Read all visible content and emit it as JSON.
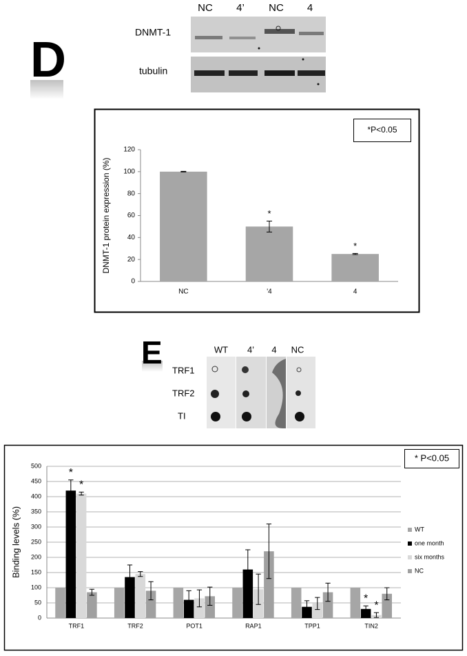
{
  "figure": {
    "panels": [
      "D",
      "E"
    ],
    "blot_d": {
      "columns": [
        "NC",
        "4’",
        "NC",
        "4"
      ],
      "rows": [
        "DNMT-1",
        "tubulin"
      ]
    },
    "blot_e": {
      "columns": [
        "WT",
        "4’",
        "4",
        "NC"
      ],
      "rows": [
        "TRF1",
        "TRF2",
        "TI"
      ]
    }
  },
  "chart_data": [
    {
      "type": "bar",
      "note": "*P<0.05",
      "y_label": "DNMT-1 protein expression (%)",
      "categories": [
        "NC",
        "'4",
        "4"
      ],
      "values": [
        100,
        50,
        25
      ],
      "errors": [
        0.3,
        5,
        0.5
      ],
      "annotations": [
        null,
        "*",
        "*"
      ],
      "color": "#a6a6a6",
      "ylim": [
        0,
        120
      ],
      "yticks": [
        0,
        20,
        40,
        60,
        80,
        100,
        120
      ],
      "grid": false
    },
    {
      "type": "grouped-bar",
      "note": "* P<0.05",
      "y_label": "Binding levels (%)",
      "categories": [
        "TRF1",
        "TRF2",
        "POT1",
        "RAP1",
        "TPP1",
        "TIN2"
      ],
      "series": [
        {
          "name": "WT",
          "color": "#a6a6a6",
          "values": [
            100,
            100,
            100,
            100,
            100,
            100
          ],
          "errors": [
            0,
            0,
            0,
            0,
            0,
            0
          ],
          "annotations": [
            null,
            null,
            null,
            null,
            null,
            null
          ]
        },
        {
          "name": "one month",
          "color": "#000000",
          "values": [
            420,
            135,
            60,
            160,
            37,
            30
          ],
          "errors": [
            35,
            40,
            30,
            65,
            20,
            10
          ],
          "annotations": [
            "*",
            null,
            null,
            null,
            null,
            "*"
          ]
        },
        {
          "name": "six months",
          "color": "#d9d9d9",
          "values": [
            410,
            145,
            65,
            95,
            48,
            10
          ],
          "errors": [
            5,
            8,
            28,
            50,
            20,
            8
          ],
          "annotations": [
            "*",
            null,
            null,
            null,
            null,
            "*"
          ]
        },
        {
          "name": "NC",
          "color": "#a0a0a0",
          "values": [
            85,
            90,
            72,
            220,
            85,
            80
          ],
          "errors": [
            10,
            30,
            30,
            90,
            30,
            20
          ],
          "annotations": [
            null,
            null,
            null,
            null,
            null,
            null
          ]
        }
      ],
      "ylim": [
        0,
        500
      ],
      "yticks": [
        0,
        50,
        100,
        150,
        200,
        250,
        300,
        350,
        400,
        450,
        500
      ],
      "grid": true,
      "legend": "right"
    }
  ]
}
